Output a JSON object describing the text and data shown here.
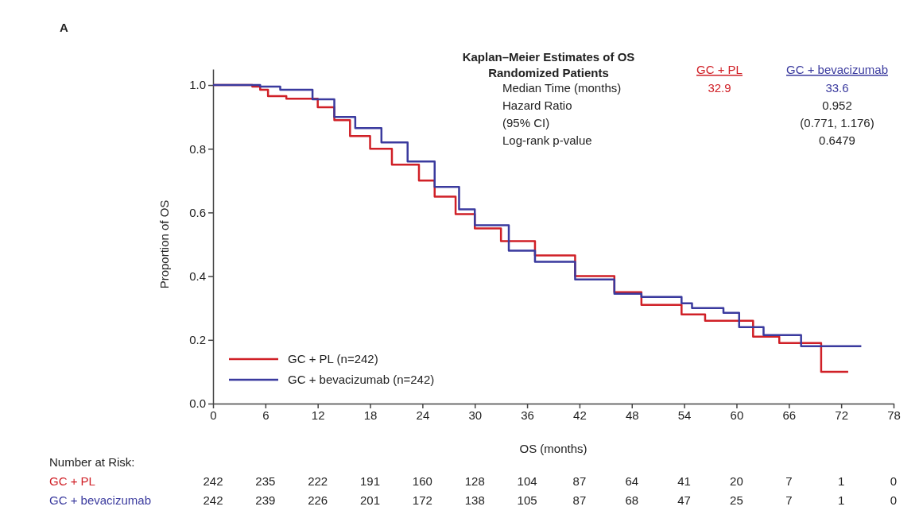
{
  "chart_data": {
    "type": "step",
    "title": "Kaplan–Meier Estimates of OS",
    "subtitle": "Randomized Patients",
    "xlabel": "OS (months)",
    "ylabel": "Proportion of OS",
    "xlim": [
      0,
      78
    ],
    "xticks": [
      0,
      6,
      12,
      18,
      24,
      30,
      36,
      42,
      48,
      54,
      60,
      66,
      72,
      78
    ],
    "ylim": [
      0,
      1.05
    ],
    "yticks": [
      {
        "value": 0,
        "label": "0.0"
      },
      {
        "value": 0.2,
        "label": "0.2"
      },
      {
        "value": 0.4,
        "label": "0.4"
      },
      {
        "value": 0.6,
        "label": "0.6"
      },
      {
        "value": 0.8,
        "label": "0.8"
      },
      {
        "value": 1,
        "label": "1.0"
      }
    ],
    "legend": "bottom left",
    "grid": false,
    "line_style": "solid",
    "marker": "none",
    "series": [
      {
        "name": "GC + PL (n=242)",
        "color": "#d02027",
        "x": [
          0,
          4.5,
          5.4,
          6.3,
          8.4,
          12,
          13.9,
          15.7,
          18,
          20.5,
          23.6,
          25.4,
          27.8,
          30,
          33,
          36.9,
          41.5,
          46,
          49.1,
          53.7,
          56.4,
          61.9,
          64.9,
          69.7,
          72.8
        ],
        "values": [
          1,
          0.995,
          0.985,
          0.965,
          0.957,
          0.93,
          0.89,
          0.84,
          0.8,
          0.75,
          0.7,
          0.65,
          0.595,
          0.55,
          0.51,
          0.465,
          0.4,
          0.35,
          0.31,
          0.28,
          0.26,
          0.21,
          0.19,
          0.1,
          0.1
        ]
      },
      {
        "name": "GC + bevacizumab (n=242)",
        "color": "#3a3a9e",
        "x": [
          0,
          5.4,
          7.7,
          11.4,
          13.9,
          16.3,
          19.3,
          22.3,
          25.4,
          28.2,
          30,
          33.9,
          36.9,
          41.5,
          46,
          49.1,
          53.7,
          54.9,
          58.5,
          60.3,
          63.1,
          67.4,
          74.3
        ],
        "values": [
          1,
          0.995,
          0.985,
          0.955,
          0.9,
          0.865,
          0.82,
          0.76,
          0.68,
          0.61,
          0.56,
          0.48,
          0.445,
          0.39,
          0.345,
          0.335,
          0.315,
          0.3,
          0.285,
          0.24,
          0.215,
          0.18,
          0.18
        ]
      }
    ],
    "annotations": [
      "A",
      "GC + PL",
      "GC + bevacizumab",
      "Median Time (months)",
      "32.9",
      "33.6",
      "Hazard Ratio",
      "0.952",
      "(95% CI)",
      "(0.771, 1.176)",
      "Log-rank p-value",
      "0.6479",
      "Number at Risk:",
      "GC + PL",
      "GC + bevacizumab",
      "242",
      "235",
      "222",
      "191",
      "160",
      "128",
      "104",
      "87",
      "64",
      "41",
      "20",
      "7",
      "1",
      "0",
      "242",
      "239",
      "226",
      "201",
      "172",
      "138",
      "105",
      "87",
      "68",
      "47",
      "25",
      "7",
      "1",
      "0"
    ]
  }
}
